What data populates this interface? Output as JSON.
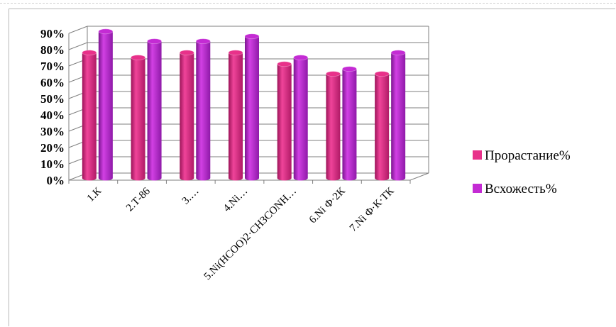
{
  "chart_data": {
    "type": "bar",
    "title": "",
    "xlabel": "",
    "ylabel": "",
    "ylim": [
      0,
      90
    ],
    "y_ticks": [
      "0%",
      "10%",
      "20%",
      "30%",
      "40%",
      "50%",
      "60%",
      "70%",
      "80%",
      "90%"
    ],
    "categories": [
      "1.К",
      "2.Т-86",
      "3.…",
      "4.Ni…",
      "5.Ni(HCOO)2·CH3CONH…",
      "6.Ni Ф·2К",
      "7.Ni Ф·К·ТК"
    ],
    "series": [
      {
        "name": "Прорастание%",
        "values": [
          76,
          73,
          76,
          76,
          69,
          63,
          63
        ],
        "color": "#e8318a"
      },
      {
        "name": "Всхожесть%",
        "values": [
          89,
          83,
          83,
          86,
          73,
          66,
          76
        ],
        "color": "#c42bd4"
      }
    ],
    "grid": true,
    "legend_position": "right"
  }
}
